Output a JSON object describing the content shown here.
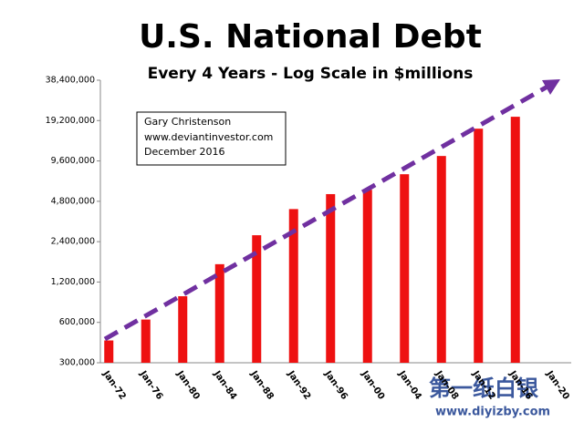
{
  "chart_data": {
    "type": "bar",
    "title": "U.S. National Debt",
    "subtitle": "Every 4 Years - Log Scale in $millions",
    "annotation": [
      "Gary Christenson",
      "www.deviantinvestor.com",
      "December 2016"
    ],
    "watermark": [
      "第一纸白银",
      "www.diyizby.com"
    ],
    "categories": [
      "Jan-72",
      "Jan-76",
      "Jan-80",
      "Jan-84",
      "Jan-88",
      "Jan-92",
      "Jan-96",
      "Jan-00",
      "Jan-04",
      "Jan-08",
      "Jan-12",
      "Jan-16",
      "Jan-20"
    ],
    "values": [
      440000,
      630000,
      940000,
      1630000,
      2680000,
      4200000,
      5430000,
      5850000,
      7640000,
      10450000,
      16700000,
      20500000,
      null
    ],
    "color": "#ee1111",
    "log_scale": true,
    "grid": false,
    "ylim": [
      300000,
      38400000
    ],
    "yticks": [
      {
        "value": 300000,
        "label": "300,000"
      },
      {
        "value": 600000,
        "label": "600,000"
      },
      {
        "value": 1200000,
        "label": "1,200,000"
      },
      {
        "value": 2400000,
        "label": "2,400,000"
      },
      {
        "value": 4800000,
        "label": "4,800,000"
      },
      {
        "value": 9600000,
        "label": "9,600,000"
      },
      {
        "value": 19200000,
        "label": "19,200,000"
      },
      {
        "value": 38400000,
        "label": "38,400,000"
      }
    ]
  }
}
